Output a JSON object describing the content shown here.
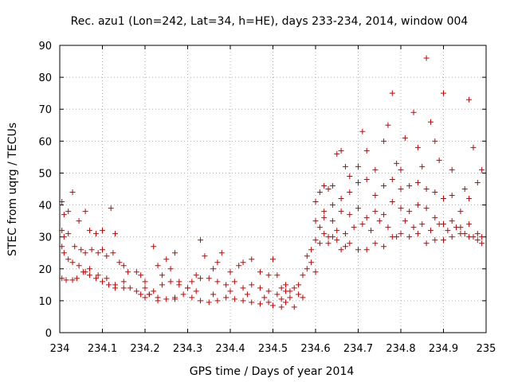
{
  "chart_data": {
    "type": "scatter",
    "title": "Rec. azu1 (Lon=242, Lat=34, h=HE), days 233-234, 2014, window 004",
    "xlabel": "GPS time / Days of year 2014",
    "ylabel": "STEC from uqrg / TECUs",
    "xlim": [
      234,
      235
    ],
    "ylim": [
      0,
      90
    ],
    "x_ticks": [
      "234",
      "234.1",
      "234.2",
      "234.3",
      "234.4",
      "234.5",
      "234.6",
      "234.7",
      "234.8",
      "234.9",
      "235"
    ],
    "y_ticks": [
      "0",
      "10",
      "20",
      "30",
      "40",
      "50",
      "60",
      "70",
      "80",
      "90"
    ],
    "grid": true,
    "marker": "+",
    "color": "#cc0000",
    "series": [
      {
        "points": [
          [
            234.005,
            41
          ],
          [
            234.01,
            37
          ],
          [
            234.02,
            38
          ],
          [
            234.03,
            44
          ],
          [
            234.045,
            35
          ],
          [
            234.06,
            38
          ],
          [
            234.07,
            32
          ],
          [
            234.085,
            31
          ],
          [
            234.1,
            32
          ],
          [
            234.12,
            39
          ],
          [
            234.13,
            31
          ],
          [
            234.005,
            32
          ],
          [
            234.01,
            30
          ],
          [
            234.02,
            31
          ],
          [
            234.035,
            27
          ],
          [
            234.05,
            26
          ],
          [
            234.06,
            25
          ],
          [
            234.075,
            26
          ],
          [
            234.09,
            25
          ],
          [
            234.1,
            26
          ],
          [
            234.11,
            24
          ],
          [
            234.125,
            25
          ],
          [
            234.14,
            22
          ],
          [
            234.15,
            21
          ],
          [
            234.16,
            19
          ],
          [
            234.18,
            19
          ],
          [
            234.19,
            18
          ],
          [
            234.005,
            27
          ],
          [
            234.01,
            25
          ],
          [
            234.02,
            23
          ],
          [
            234.03,
            22
          ],
          [
            234.045,
            21
          ],
          [
            234.06,
            19
          ],
          [
            234.07,
            18
          ],
          [
            234.085,
            17
          ],
          [
            234.1,
            16
          ],
          [
            234.115,
            15
          ],
          [
            234.13,
            15
          ],
          [
            234.15,
            14
          ],
          [
            234.165,
            14
          ],
          [
            234.18,
            13
          ],
          [
            234.19,
            12
          ],
          [
            234.2,
            11
          ],
          [
            234.005,
            17
          ],
          [
            234.015,
            16.5
          ],
          [
            234.03,
            16.5
          ],
          [
            234.04,
            17
          ],
          [
            234.055,
            19
          ],
          [
            234.07,
            20
          ],
          [
            234.09,
            18
          ],
          [
            234.11,
            17
          ],
          [
            234.13,
            14
          ],
          [
            234.15,
            16
          ],
          [
            234.2,
            16
          ],
          [
            234.21,
            12
          ],
          [
            234.22,
            27
          ],
          [
            234.23,
            21
          ],
          [
            234.24,
            18
          ],
          [
            234.25,
            23
          ],
          [
            234.26,
            20
          ],
          [
            234.27,
            25
          ],
          [
            234.28,
            16
          ],
          [
            234.3,
            14
          ],
          [
            234.32,
            18
          ],
          [
            234.33,
            29
          ],
          [
            234.34,
            24
          ],
          [
            234.36,
            20
          ],
          [
            234.37,
            22
          ],
          [
            234.38,
            25
          ],
          [
            234.4,
            19
          ],
          [
            234.42,
            21
          ],
          [
            234.43,
            22
          ],
          [
            234.45,
            23
          ],
          [
            234.47,
            19
          ],
          [
            234.49,
            18
          ],
          [
            234.5,
            23
          ],
          [
            234.2,
            14
          ],
          [
            234.22,
            13
          ],
          [
            234.24,
            15
          ],
          [
            234.26,
            16
          ],
          [
            234.28,
            15
          ],
          [
            234.3,
            14
          ],
          [
            234.31,
            16
          ],
          [
            234.33,
            17
          ],
          [
            234.35,
            17
          ],
          [
            234.37,
            16
          ],
          [
            234.39,
            15
          ],
          [
            234.41,
            16
          ],
          [
            234.43,
            14
          ],
          [
            234.45,
            15
          ],
          [
            234.47,
            14
          ],
          [
            234.49,
            13
          ],
          [
            234.51,
            12
          ],
          [
            234.53,
            13
          ],
          [
            234.55,
            14
          ],
          [
            234.21,
            12
          ],
          [
            234.23,
            11
          ],
          [
            234.25,
            10.5
          ],
          [
            234.27,
            11
          ],
          [
            234.29,
            12
          ],
          [
            234.31,
            11
          ],
          [
            234.33,
            10
          ],
          [
            234.35,
            9.5
          ],
          [
            234.37,
            10
          ],
          [
            234.39,
            11
          ],
          [
            234.41,
            10.5
          ],
          [
            234.43,
            10
          ],
          [
            234.45,
            9.5
          ],
          [
            234.47,
            9
          ],
          [
            234.49,
            9.5
          ],
          [
            234.5,
            8.5
          ],
          [
            234.52,
            8
          ],
          [
            234.53,
            9.5
          ],
          [
            234.55,
            8
          ],
          [
            234.57,
            11
          ],
          [
            234.23,
            10
          ],
          [
            234.27,
            10.5
          ],
          [
            234.32,
            13
          ],
          [
            234.36,
            12
          ],
          [
            234.4,
            13
          ],
          [
            234.44,
            12
          ],
          [
            234.48,
            11
          ],
          [
            234.52,
            10.5
          ],
          [
            234.54,
            11
          ],
          [
            234.56,
            12
          ],
          [
            234.51,
            18
          ],
          [
            234.52,
            14
          ],
          [
            234.53,
            15
          ],
          [
            234.54,
            13
          ],
          [
            234.56,
            15
          ],
          [
            234.57,
            18
          ],
          [
            234.58,
            20
          ],
          [
            234.59,
            22
          ],
          [
            234.6,
            19
          ],
          [
            234.58,
            24
          ],
          [
            234.59,
            26
          ],
          [
            234.6,
            29
          ],
          [
            234.61,
            33
          ],
          [
            234.62,
            31
          ],
          [
            234.63,
            28
          ],
          [
            234.64,
            30
          ],
          [
            234.65,
            32
          ],
          [
            234.66,
            26
          ],
          [
            234.67,
            27
          ],
          [
            234.68,
            28
          ],
          [
            234.7,
            26
          ],
          [
            234.72,
            26
          ],
          [
            234.74,
            28
          ],
          [
            234.76,
            27
          ],
          [
            234.78,
            30
          ],
          [
            234.8,
            31
          ],
          [
            234.82,
            30
          ],
          [
            234.84,
            31
          ],
          [
            234.86,
            28
          ],
          [
            234.88,
            29
          ],
          [
            234.9,
            29
          ],
          [
            234.92,
            30
          ],
          [
            234.94,
            31
          ],
          [
            234.96,
            30
          ],
          [
            234.98,
            29
          ],
          [
            234.99,
            28
          ],
          [
            234.6,
            41
          ],
          [
            234.61,
            44
          ],
          [
            234.62,
            46
          ],
          [
            234.63,
            45
          ],
          [
            234.64,
            46
          ],
          [
            234.65,
            56
          ],
          [
            234.66,
            57
          ],
          [
            234.67,
            52
          ],
          [
            234.68,
            49
          ],
          [
            234.7,
            52
          ],
          [
            234.71,
            63
          ],
          [
            234.72,
            57
          ],
          [
            234.74,
            51
          ],
          [
            234.76,
            60
          ],
          [
            234.77,
            65
          ],
          [
            234.78,
            75
          ],
          [
            234.79,
            53
          ],
          [
            234.8,
            51
          ],
          [
            234.81,
            61
          ],
          [
            234.83,
            69
          ],
          [
            234.84,
            58
          ],
          [
            234.85,
            52
          ],
          [
            234.86,
            86
          ],
          [
            234.87,
            66
          ],
          [
            234.88,
            60
          ],
          [
            234.89,
            54
          ],
          [
            234.9,
            75
          ],
          [
            234.92,
            51
          ],
          [
            234.95,
            45
          ],
          [
            234.96,
            73
          ],
          [
            234.97,
            58
          ],
          [
            234.99,
            51
          ],
          [
            234.62,
            38
          ],
          [
            234.64,
            40
          ],
          [
            234.66,
            42
          ],
          [
            234.68,
            44
          ],
          [
            234.7,
            47
          ],
          [
            234.72,
            48
          ],
          [
            234.74,
            43
          ],
          [
            234.76,
            46
          ],
          [
            234.78,
            48
          ],
          [
            234.8,
            45
          ],
          [
            234.82,
            46
          ],
          [
            234.84,
            47
          ],
          [
            234.86,
            45
          ],
          [
            234.88,
            44
          ],
          [
            234.9,
            42
          ],
          [
            234.92,
            43
          ],
          [
            234.94,
            38
          ],
          [
            234.96,
            42
          ],
          [
            234.98,
            47
          ],
          [
            234.6,
            35
          ],
          [
            234.62,
            36
          ],
          [
            234.64,
            35
          ],
          [
            234.66,
            38
          ],
          [
            234.68,
            37
          ],
          [
            234.7,
            39
          ],
          [
            234.72,
            36
          ],
          [
            234.74,
            38
          ],
          [
            234.76,
            37
          ],
          [
            234.78,
            41
          ],
          [
            234.8,
            39
          ],
          [
            234.82,
            38
          ],
          [
            234.84,
            40
          ],
          [
            234.86,
            39
          ],
          [
            234.88,
            36
          ],
          [
            234.9,
            34
          ],
          [
            234.92,
            35
          ],
          [
            234.94,
            33
          ],
          [
            234.96,
            34
          ],
          [
            234.98,
            31
          ],
          [
            234.61,
            28
          ],
          [
            234.63,
            30
          ],
          [
            234.65,
            29
          ],
          [
            234.67,
            31
          ],
          [
            234.69,
            33
          ],
          [
            234.71,
            34
          ],
          [
            234.73,
            32
          ],
          [
            234.75,
            35
          ],
          [
            234.77,
            33
          ],
          [
            234.79,
            30
          ],
          [
            234.81,
            35
          ],
          [
            234.83,
            33
          ],
          [
            234.85,
            34
          ],
          [
            234.87,
            32
          ],
          [
            234.89,
            34
          ],
          [
            234.91,
            32
          ],
          [
            234.93,
            33
          ],
          [
            234.95,
            31
          ],
          [
            234.97,
            30
          ],
          [
            234.99,
            30
          ]
        ]
      }
    ]
  }
}
